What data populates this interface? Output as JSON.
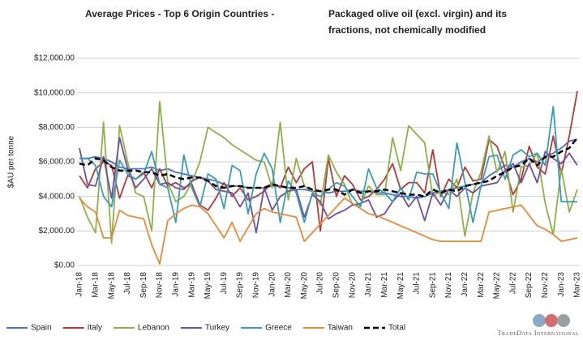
{
  "chart_data": {
    "type": "line",
    "title": "Average Prices - Top 6 Origin Countries -",
    "subtitle": [
      "Packaged olive oil (excl. virgin) and its",
      "fractions, not chemically modified"
    ],
    "ylabel": "$AU per tonne",
    "logo": "TradeData International",
    "categories": [
      "Jan-18",
      null,
      "Mar-18",
      null,
      "May-18",
      null,
      "Jul-18",
      null,
      "Sep-18",
      null,
      "Nov-18",
      null,
      "Jan-19",
      null,
      "Mar-19",
      null,
      "May-19",
      null,
      "Jul-19",
      null,
      "Sep-19",
      null,
      "Nov-19",
      null,
      "Jan-20",
      null,
      "Mar-20",
      null,
      "May-20",
      null,
      "Jul-20",
      null,
      "Sep-20",
      null,
      "Nov-20",
      null,
      "Jan-21",
      null,
      "Mar-21",
      null,
      "May-21",
      null,
      "Jul-21",
      null,
      "Sep-21",
      null,
      "Nov-21",
      null,
      "Jan-22",
      null,
      "Mar-22",
      null,
      "May-22",
      null,
      "Jul-22",
      null,
      "Sep-22",
      null,
      "Nov-22",
      null,
      "Jan-23",
      null,
      "Mar-23"
    ],
    "ylim": [
      0,
      12000
    ],
    "yticks": [
      {
        "value": 0,
        "label": "$0.00"
      },
      {
        "value": 2000,
        "label": "$2,000.00"
      },
      {
        "value": 4000,
        "label": "$4,000.00"
      },
      {
        "value": 6000,
        "label": "$6,000.00"
      },
      {
        "value": 8000,
        "label": "$8,000.00"
      },
      {
        "value": 10000,
        "label": "$10,000.00"
      },
      {
        "value": 12000,
        "label": "$12,000.00"
      }
    ],
    "grid": true,
    "legend": "bottom",
    "series": [
      {
        "name": "Spain",
        "color": "#4472c4",
        "values": [
          6200,
          6200,
          6300,
          6200,
          6000,
          5700,
          5600,
          5600,
          5600,
          5700,
          5500,
          5600,
          5400,
          5300,
          5200,
          5100,
          5000,
          4900,
          4700,
          4600,
          4600,
          4500,
          4500,
          4500,
          4600,
          4600,
          4500,
          4400,
          4400,
          4300,
          4300,
          4200,
          4300,
          4300,
          4400,
          4300,
          4300,
          4200,
          4200,
          4100,
          4000,
          4000,
          3900,
          4000,
          4200,
          4300,
          4400,
          4500,
          4600,
          4700,
          4800,
          5200,
          5500,
          5800,
          5700,
          6000,
          6200,
          6000,
          6300,
          6500,
          6800,
          7200,
          7300
        ]
      },
      {
        "name": "Italy",
        "color": "#b03a3a",
        "values": [
          5200,
          4500,
          5600,
          6000,
          5800,
          3900,
          5200,
          5000,
          5400,
          4500,
          5600,
          4600,
          4800,
          4500,
          4700,
          3500,
          3200,
          3900,
          4800,
          4000,
          4500,
          3800,
          4000,
          4300,
          4800,
          4500,
          5700,
          4800,
          5600,
          6000,
          2000,
          6200,
          4000,
          5200,
          4700,
          3800,
          4000,
          4400,
          5000,
          5900,
          4400,
          4800,
          4800,
          4200,
          6700,
          4000,
          5000,
          4500,
          5700,
          4900,
          5000,
          7300,
          6900,
          5600,
          4100,
          5000,
          6900,
          5700,
          5300,
          7500,
          5300,
          7500,
          10100
        ]
      },
      {
        "name": "Lebanon",
        "color": "#8db04a",
        "values": [
          4000,
          2800,
          1900,
          8300,
          1300,
          8100,
          6000,
          4200,
          4000,
          2000,
          9500,
          4800,
          3700,
          4000,
          4800,
          6000,
          8000,
          7700,
          7400,
          7000,
          6700,
          6400,
          6100,
          6000,
          4500,
          8300,
          3800,
          6200,
          4600,
          4300,
          3500,
          6400,
          5400,
          4700,
          3500,
          3500,
          4600,
          4100,
          4100,
          7400,
          5500,
          8100,
          7600,
          7100,
          4000,
          4300,
          4100,
          5000,
          1700,
          4200,
          5400,
          7500,
          5400,
          6600,
          3100,
          5700,
          5800,
          6500,
          3600,
          1800,
          5600,
          3100,
          4400
        ]
      },
      {
        "name": "Turkey",
        "color": "#6f4f9a",
        "values": [
          6800,
          4700,
          4600,
          6300,
          3900,
          7400,
          5600,
          4500,
          5000,
          5600,
          4700,
          4800,
          4500,
          4400,
          4900,
          5100,
          4900,
          4400,
          4300,
          4200,
          3400,
          4200,
          1900,
          4500,
          3200,
          4000,
          4300,
          4400,
          2800,
          4100,
          3700,
          2700,
          3000,
          3200,
          3500,
          3600,
          3800,
          2800,
          3000,
          3700,
          4200,
          3400,
          4000,
          2600,
          4200,
          3500,
          4400,
          4000,
          4500,
          4200,
          4600,
          4700,
          4800,
          5500,
          5900,
          4800,
          5900,
          4800,
          6600,
          6200,
          5900,
          6500,
          5800
        ]
      },
      {
        "name": "Greece",
        "color": "#3a9bb5",
        "values": [
          6200,
          6200,
          5800,
          4000,
          3400,
          6100,
          5300,
          5000,
          5300,
          6600,
          4700,
          4500,
          2500,
          6400,
          4500,
          3400,
          5300,
          5000,
          3300,
          5800,
          5500,
          3000,
          5300,
          6500,
          5600,
          2500,
          4900,
          4200,
          2500,
          4200,
          4000,
          4400,
          4800,
          4600,
          4000,
          3400,
          5600,
          4500,
          4200,
          3700,
          4500,
          3800,
          5400,
          5300,
          5300,
          4200,
          3300,
          7100,
          4800,
          2500,
          4600,
          6300,
          6400,
          5000,
          6400,
          6700,
          6300,
          6500,
          5800,
          9200,
          3700,
          3700,
          3700
        ]
      },
      {
        "name": "Taiwan",
        "color": "#e8893a",
        "values": [
          3900,
          3400,
          3100,
          1600,
          1600,
          3200,
          2900,
          2800,
          2700,
          1200,
          100,
          2600,
          3000,
          3300,
          3500,
          3400,
          3000,
          2300,
          1600,
          2500,
          1400,
          2200,
          3000,
          3300,
          3100,
          3000,
          2900,
          2800,
          1400,
          1900,
          2400,
          2900,
          3400,
          3900,
          3600,
          3300,
          3000,
          2900,
          2700,
          2500,
          2300,
          2100,
          1900,
          1700,
          1500,
          1400,
          1400,
          1400,
          1400,
          1400,
          1400,
          3100,
          3200,
          3300,
          3400,
          3500,
          2900,
          2300,
          2100,
          1800,
          1400,
          1500,
          1600
        ]
      },
      {
        "name": "Total",
        "color": "#000000",
        "dashed": true,
        "values": [
          5900,
          5800,
          6200,
          6100,
          5700,
          5500,
          5500,
          5500,
          5400,
          5400,
          5200,
          5300,
          5100,
          5000,
          5100,
          5100,
          4900,
          4600,
          4500,
          4600,
          4600,
          4500,
          4500,
          4500,
          4700,
          4600,
          4500,
          4500,
          4600,
          4400,
          4300,
          4400,
          4400,
          4100,
          4400,
          4200,
          4300,
          4300,
          4400,
          4300,
          4200,
          4100,
          4100,
          4000,
          4400,
          4200,
          4400,
          4300,
          4600,
          4700,
          4800,
          4900,
          5200,
          5400,
          5700,
          5800,
          6200,
          5800,
          6300,
          6300,
          6600,
          6800,
          7400
        ]
      }
    ]
  }
}
